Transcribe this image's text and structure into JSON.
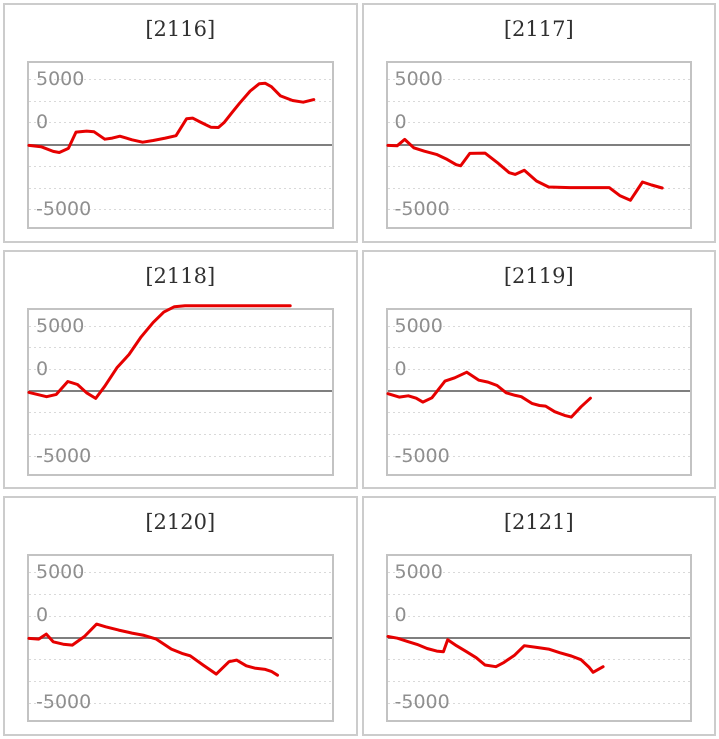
{
  "axis": {
    "y_ticks": [
      "5000",
      "0",
      "-5000"
    ],
    "gridline_values": [
      5000,
      3333,
      1667,
      0,
      -1667,
      -3333,
      -5000
    ]
  },
  "series_color": "#e60000",
  "zero_line_color": "#7f7f7f",
  "chart_data": [
    {
      "type": "line",
      "title": "[2116]",
      "machine": "2116",
      "xlabel": "",
      "ylabel": "",
      "ylim": [
        -6500,
        6500
      ],
      "y_tick_values": [
        5000,
        0,
        -5000
      ],
      "points": [
        [
          0.0,
          -100
        ],
        [
          0.04,
          -200
        ],
        [
          0.08,
          -560
        ],
        [
          0.1,
          -640
        ],
        [
          0.13,
          -330
        ],
        [
          0.155,
          920
        ],
        [
          0.19,
          1000
        ],
        [
          0.215,
          950
        ],
        [
          0.25,
          380
        ],
        [
          0.275,
          460
        ],
        [
          0.3,
          610
        ],
        [
          0.34,
          330
        ],
        [
          0.375,
          150
        ],
        [
          0.41,
          280
        ],
        [
          0.45,
          460
        ],
        [
          0.485,
          650
        ],
        [
          0.52,
          1950
        ],
        [
          0.54,
          2000
        ],
        [
          0.565,
          1700
        ],
        [
          0.6,
          1300
        ],
        [
          0.625,
          1280
        ],
        [
          0.645,
          1680
        ],
        [
          0.67,
          2420
        ],
        [
          0.695,
          3140
        ],
        [
          0.73,
          4080
        ],
        [
          0.76,
          4640
        ],
        [
          0.78,
          4670
        ],
        [
          0.8,
          4410
        ],
        [
          0.83,
          3700
        ],
        [
          0.87,
          3350
        ],
        [
          0.905,
          3220
        ],
        [
          0.94,
          3420
        ]
      ]
    },
    {
      "type": "line",
      "title": "[2117]",
      "machine": "2117",
      "xlabel": "",
      "ylabel": "",
      "ylim": [
        -6500,
        6500
      ],
      "y_tick_values": [
        5000,
        0,
        -5000
      ],
      "points": [
        [
          0.0,
          -100
        ],
        [
          0.03,
          -130
        ],
        [
          0.055,
          360
        ],
        [
          0.085,
          -280
        ],
        [
          0.12,
          -540
        ],
        [
          0.16,
          -790
        ],
        [
          0.195,
          -1170
        ],
        [
          0.225,
          -1580
        ],
        [
          0.24,
          -1660
        ],
        [
          0.27,
          -710
        ],
        [
          0.32,
          -690
        ],
        [
          0.36,
          -1400
        ],
        [
          0.4,
          -2190
        ],
        [
          0.42,
          -2320
        ],
        [
          0.45,
          -2010
        ],
        [
          0.49,
          -2830
        ],
        [
          0.53,
          -3290
        ],
        [
          0.6,
          -3340
        ],
        [
          0.73,
          -3340
        ],
        [
          0.765,
          -3950
        ],
        [
          0.8,
          -4310
        ],
        [
          0.84,
          -2910
        ],
        [
          0.87,
          -3140
        ],
        [
          0.905,
          -3370
        ]
      ]
    },
    {
      "type": "line",
      "title": "[2118]",
      "machine": "2118",
      "xlabel": "",
      "ylabel": "",
      "ylim": [
        -6500,
        6500
      ],
      "y_tick_values": [
        5000,
        0,
        -5000
      ],
      "points": [
        [
          0.0,
          -100
        ],
        [
          0.058,
          -430
        ],
        [
          0.09,
          -250
        ],
        [
          0.128,
          740
        ],
        [
          0.16,
          510
        ],
        [
          0.19,
          -130
        ],
        [
          0.22,
          -560
        ],
        [
          0.25,
          380
        ],
        [
          0.29,
          1790
        ],
        [
          0.33,
          2810
        ],
        [
          0.37,
          4160
        ],
        [
          0.41,
          5280
        ],
        [
          0.445,
          6070
        ],
        [
          0.48,
          6480
        ],
        [
          0.515,
          6560
        ],
        [
          0.7,
          6560
        ],
        [
          0.862,
          6560
        ]
      ]
    },
    {
      "type": "line",
      "title": "[2119]",
      "machine": "2119",
      "xlabel": "",
      "ylabel": "",
      "ylim": [
        -6500,
        6500
      ],
      "y_tick_values": [
        5000,
        0,
        -5000
      ],
      "points": [
        [
          0.0,
          -200
        ],
        [
          0.037,
          -460
        ],
        [
          0.067,
          -360
        ],
        [
          0.093,
          -540
        ],
        [
          0.115,
          -840
        ],
        [
          0.145,
          -510
        ],
        [
          0.188,
          770
        ],
        [
          0.22,
          1020
        ],
        [
          0.26,
          1450
        ],
        [
          0.3,
          840
        ],
        [
          0.33,
          690
        ],
        [
          0.36,
          430
        ],
        [
          0.39,
          -130
        ],
        [
          0.42,
          -330
        ],
        [
          0.44,
          -430
        ],
        [
          0.475,
          -940
        ],
        [
          0.5,
          -1100
        ],
        [
          0.52,
          -1150
        ],
        [
          0.55,
          -1580
        ],
        [
          0.583,
          -1860
        ],
        [
          0.605,
          -1990
        ],
        [
          0.637,
          -1200
        ],
        [
          0.668,
          -540
        ]
      ]
    },
    {
      "type": "line",
      "title": "[2120]",
      "machine": "2120",
      "xlabel": "",
      "ylabel": "",
      "ylim": [
        -6500,
        6500
      ],
      "y_tick_values": [
        5000,
        0,
        -5000
      ],
      "points": [
        [
          0.0,
          -100
        ],
        [
          0.032,
          -150
        ],
        [
          0.057,
          230
        ],
        [
          0.08,
          -360
        ],
        [
          0.113,
          -540
        ],
        [
          0.143,
          -610
        ],
        [
          0.183,
          50
        ],
        [
          0.223,
          1000
        ],
        [
          0.253,
          790
        ],
        [
          0.296,
          540
        ],
        [
          0.34,
          310
        ],
        [
          0.38,
          130
        ],
        [
          0.42,
          -150
        ],
        [
          0.47,
          -920
        ],
        [
          0.505,
          -1250
        ],
        [
          0.532,
          -1430
        ],
        [
          0.575,
          -2150
        ],
        [
          0.618,
          -2840
        ],
        [
          0.66,
          -1890
        ],
        [
          0.685,
          -1760
        ],
        [
          0.717,
          -2200
        ],
        [
          0.745,
          -2380
        ],
        [
          0.78,
          -2480
        ],
        [
          0.8,
          -2630
        ],
        [
          0.82,
          -2920
        ]
      ]
    },
    {
      "type": "line",
      "title": "[2121]",
      "machine": "2121",
      "xlabel": "",
      "ylabel": "",
      "ylim": [
        -6500,
        6500
      ],
      "y_tick_values": [
        5000,
        0,
        -5000
      ],
      "points": [
        [
          0.0,
          50
        ],
        [
          0.031,
          -80
        ],
        [
          0.064,
          -330
        ],
        [
          0.096,
          -560
        ],
        [
          0.129,
          -870
        ],
        [
          0.161,
          -1070
        ],
        [
          0.183,
          -1120
        ],
        [
          0.197,
          -200
        ],
        [
          0.226,
          -660
        ],
        [
          0.259,
          -1120
        ],
        [
          0.291,
          -1580
        ],
        [
          0.32,
          -2140
        ],
        [
          0.356,
          -2270
        ],
        [
          0.383,
          -1940
        ],
        [
          0.418,
          -1380
        ],
        [
          0.45,
          -660
        ],
        [
          0.49,
          -790
        ],
        [
          0.53,
          -920
        ],
        [
          0.568,
          -1200
        ],
        [
          0.605,
          -1450
        ],
        [
          0.637,
          -1730
        ],
        [
          0.664,
          -2320
        ],
        [
          0.677,
          -2700
        ],
        [
          0.71,
          -2270
        ]
      ]
    }
  ]
}
